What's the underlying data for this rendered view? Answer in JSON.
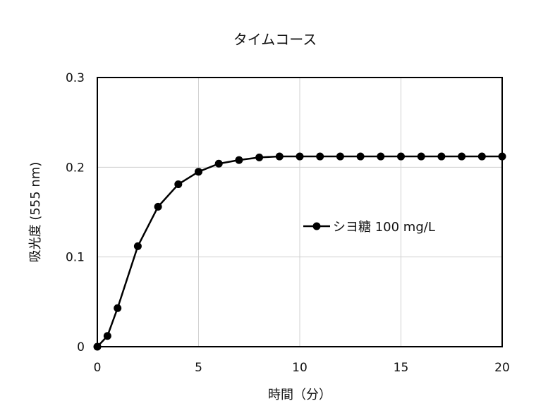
{
  "chart_data": {
    "type": "line",
    "title": "タイムコース",
    "xlabel": "時間（分）",
    "ylabel": "吸光度 (555 nm)",
    "xlim": [
      0,
      20
    ],
    "ylim": [
      0,
      0.3
    ],
    "x_ticks": [
      0,
      5,
      10,
      15,
      20
    ],
    "y_ticks": [
      0,
      0.1,
      0.2,
      0.3
    ],
    "x_tick_labels": [
      "0",
      "5",
      "10",
      "15",
      "20"
    ],
    "y_tick_labels": [
      "0",
      "0.1",
      "0.2",
      "0.3"
    ],
    "grid": true,
    "legend_position": "right-middle",
    "series": [
      {
        "name": "シヨ糖 100 mg/L",
        "color": "#000000",
        "marker": "circle",
        "x": [
          0,
          0.5,
          1,
          2,
          3,
          4,
          5,
          6,
          7,
          8,
          9,
          10,
          11,
          12,
          13,
          14,
          15,
          16,
          17,
          18,
          19,
          20
        ],
        "y": [
          0,
          0.012,
          0.043,
          0.112,
          0.156,
          0.181,
          0.195,
          0.204,
          0.208,
          0.211,
          0.212,
          0.212,
          0.212,
          0.212,
          0.212,
          0.212,
          0.212,
          0.212,
          0.212,
          0.212,
          0.212,
          0.212
        ]
      }
    ]
  }
}
